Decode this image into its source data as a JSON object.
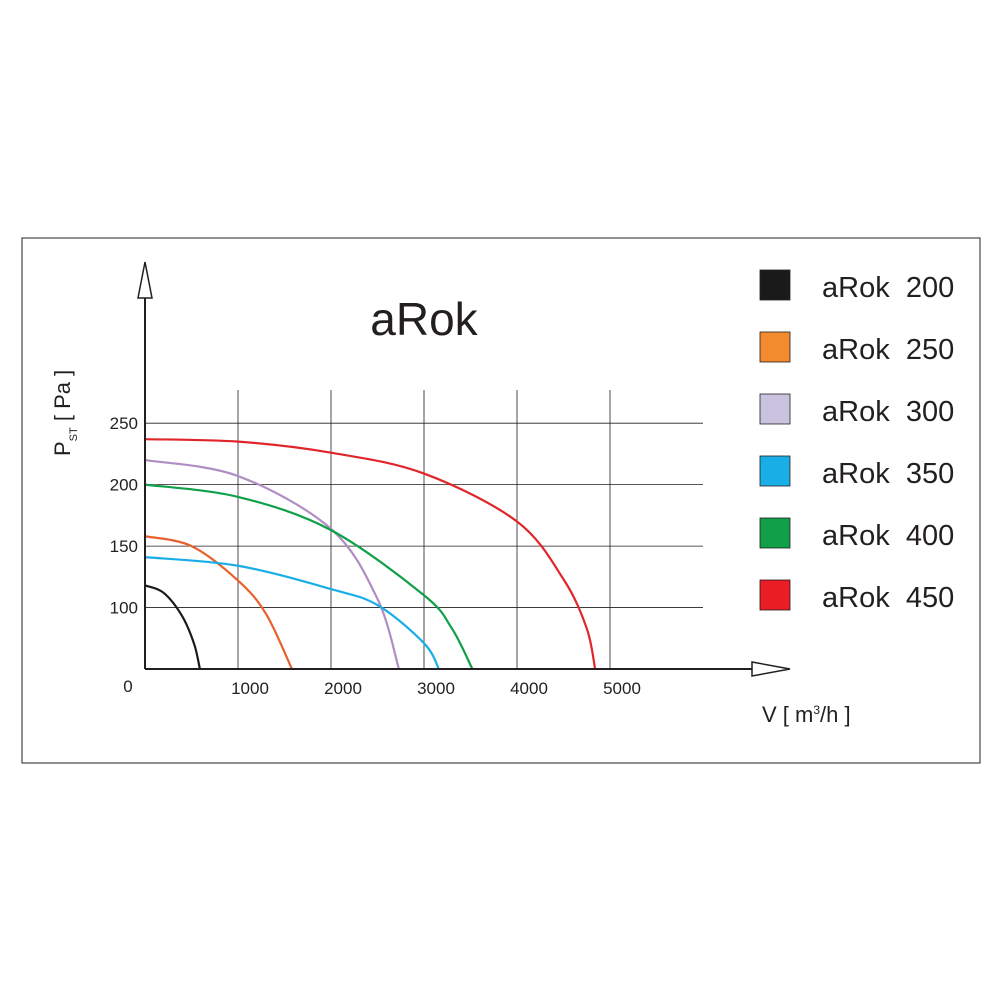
{
  "chart_data": {
    "type": "line",
    "title": "aRok",
    "x_label": {
      "main": "V [ m",
      "sup": "3",
      "rest": "/h ]"
    },
    "y_label": {
      "main": "P",
      "sub": "ST",
      "rest": " [ Pa ]"
    },
    "origin_label": "0",
    "xlim": [
      0,
      6000
    ],
    "ylim": [
      50,
      277
    ],
    "xticks": [
      1000,
      2000,
      3000,
      4000,
      5000
    ],
    "yticks": [
      100,
      150,
      200,
      250
    ],
    "grid": true,
    "legend": "right",
    "series": [
      {
        "name": "aRok  200",
        "color": "#1a1a1a",
        "x": [
          0,
          200,
          400,
          530,
          590
        ],
        "values": [
          118,
          112,
          93,
          70,
          50
        ]
      },
      {
        "name": "aRok  250",
        "color": "#e8612c",
        "legend_color": "#f28a2e",
        "x": [
          0,
          500,
          1000,
          1300,
          1580
        ],
        "values": [
          158,
          150,
          122,
          95,
          50
        ]
      },
      {
        "name": "aRok  300",
        "color": "#b08ec4",
        "legend_color": "#c9c3e0",
        "x": [
          0,
          1000,
          2000,
          2500,
          2730
        ],
        "values": [
          220,
          207,
          164,
          107,
          50
        ]
      },
      {
        "name": "aRok  350",
        "color": "#19aee6",
        "x": [
          0,
          1000,
          2000,
          2500,
          3000,
          3160
        ],
        "values": [
          141,
          134,
          115,
          102,
          71,
          50
        ]
      },
      {
        "name": "aRok  400",
        "color": "#10a04a",
        "x": [
          0,
          1000,
          2000,
          3000,
          3300,
          3520
        ],
        "values": [
          200,
          190,
          163,
          110,
          83,
          50
        ]
      },
      {
        "name": "aRok  450",
        "color": "#e0262b",
        "legend_color": "#ea1c24",
        "x": [
          0,
          1000,
          2000,
          3000,
          4000,
          4500,
          4750,
          4840
        ],
        "values": [
          237,
          235,
          226,
          209,
          170,
          123,
          83,
          50
        ]
      }
    ]
  }
}
